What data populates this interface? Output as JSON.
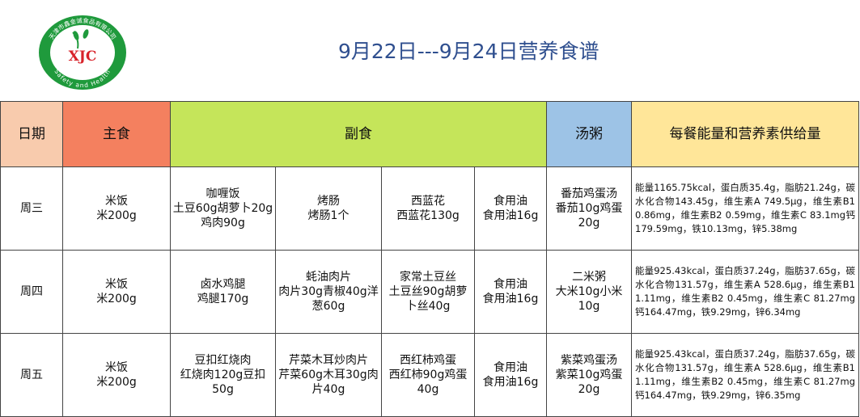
{
  "logo": {
    "initials": "XJC",
    "top_text": "天津市鑫金诚食品有限公司",
    "bottom_text": "Safety and Health"
  },
  "title": "9月22日---9月24日营养食谱",
  "headers": {
    "date": "日期",
    "staple": "主食",
    "side": "副食",
    "soup": "汤粥",
    "energy": "每餐能量和营养素供给量"
  },
  "rows": [
    {
      "day": "周三",
      "staple": {
        "name": "米饭",
        "detail": "米200g"
      },
      "side1": {
        "name": "咖喱饭",
        "detail": "土豆60g胡萝卜20g鸡肉90g"
      },
      "side2": {
        "name": "烤肠",
        "detail": "烤肠1个"
      },
      "side3": {
        "name": "西蓝花",
        "detail": "西蓝花130g"
      },
      "side4": {
        "name": "食用油",
        "detail": "食用油16g"
      },
      "soup": {
        "name": "番茄鸡蛋汤",
        "detail": "番茄10g鸡蛋20g"
      },
      "energy": "能量1165.75kcal，蛋白质35.4g，脂肪21.24g，碳水化合物143.45g，维生素A 749.5μg，维生素B1 0.86mg，维生素B2 0.59mg，维生素C 83.1mg钙179.59mg，铁10.13mg，锌5.38mg"
    },
    {
      "day": "周四",
      "staple": {
        "name": "米饭",
        "detail": "米200g"
      },
      "side1": {
        "name": "卤水鸡腿",
        "detail": "鸡腿170g"
      },
      "side2": {
        "name": "蚝油肉片",
        "detail": "肉片30g青椒40g洋葱60g"
      },
      "side3": {
        "name": "家常土豆丝",
        "detail": "土豆丝90g胡萝卜丝40g"
      },
      "side4": {
        "name": "食用油",
        "detail": "食用油16g"
      },
      "soup": {
        "name": "二米粥",
        "detail": "大米10g小米10g"
      },
      "energy": "能量925.43kcal，蛋白质37.24g，脂肪37.65g，碳水化合物131.57g，维生素A 528.6μg，维生素B1 1.11mg，维生素B2 0.45mg，维生素C 81.27mg钙164.47mg，铁9.29mg，锌6.34mg"
    },
    {
      "day": "周五",
      "staple": {
        "name": "米饭",
        "detail": "米200g"
      },
      "side1": {
        "name": "豆扣红烧肉",
        "detail": "红烧肉120g豆扣50g"
      },
      "side2": {
        "name": "芹菜木耳炒肉片",
        "detail": "芹菜60g木耳30g肉片40g"
      },
      "side3": {
        "name": "西红柿鸡蛋",
        "detail": "西红柿90g鸡蛋40g"
      },
      "side4": {
        "name": "食用油",
        "detail": "食用油16g"
      },
      "soup": {
        "name": "紫菜鸡蛋汤",
        "detail": "紫菜10g鸡蛋20g"
      },
      "energy": "能量925.43kcal，蛋白质37.24g，脂肪37.65g，碳水化合物131.57g，维生素A 528.6μg，维生素B1 1.11mg，维生素B2 0.45mg，维生素C 81.27mg钙164.47mg，铁9.29mg，锌6.35mg"
    }
  ],
  "colors": {
    "date_header": "#f8cbad",
    "staple_header": "#f4805f",
    "side_header": "#c5e55a",
    "soup_header": "#9dc3e6",
    "energy_header": "#ffe699",
    "title": "#2f4f8f",
    "logo_green": "#1f9a3c",
    "logo_red": "#d8232a"
  }
}
